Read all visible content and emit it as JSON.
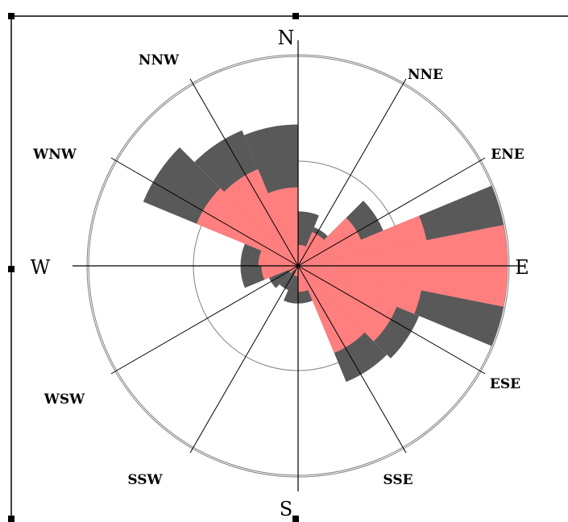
{
  "chart_data": {
    "type": "polar-bar",
    "title": "",
    "directions": [
      "N",
      "NNE",
      "ENE",
      "E",
      "ESE",
      "SSE",
      "S",
      "SSW",
      "WSW",
      "W",
      "WNW",
      "NNW"
    ],
    "direction_angles_deg": [
      0,
      30,
      60,
      90,
      120,
      150,
      180,
      210,
      240,
      270,
      300,
      330
    ],
    "ring_values": [
      1,
      2
    ],
    "r_max": 2.0,
    "colors": {
      "outer_series": "#595959",
      "inner_series": "#ff7f7f",
      "axis": "#000000",
      "ring": "#808080"
    },
    "series": [
      {
        "values": [
          {
            "start": 0,
            "end": 22.5,
            "r": 0.52
          },
          {
            "start": 22.5,
            "end": 45,
            "r": 0.4
          },
          {
            "start": 45,
            "end": 67.5,
            "r": 0.88
          },
          {
            "start": 67.5,
            "end": 78.75,
            "r": 2.03
          },
          {
            "start": 78.75,
            "end": 101.25,
            "r": 2.03
          },
          {
            "start": 101.25,
            "end": 112.5,
            "r": 2.03
          },
          {
            "start": 112.5,
            "end": 135,
            "r": 1.25
          },
          {
            "start": 135,
            "end": 157.5,
            "r": 1.2
          },
          {
            "start": 157.5,
            "end": 180,
            "r": 0.36
          },
          {
            "start": 180,
            "end": 202.5,
            "r": 0.36
          },
          {
            "start": 202.5,
            "end": 225,
            "r": 0.25
          },
          {
            "start": 225,
            "end": 247.5,
            "r": 0.3
          },
          {
            "start": 247.5,
            "end": 270,
            "r": 0.55
          },
          {
            "start": 270,
            "end": 292.5,
            "r": 0.55
          },
          {
            "start": 292.5,
            "end": 315,
            "r": 1.6
          },
          {
            "start": 315,
            "end": 337.5,
            "r": 1.4
          },
          {
            "start": 337.5,
            "end": 360,
            "r": 1.35
          }
        ]
      },
      {
        "values": [
          {
            "start": 0,
            "end": 22.5,
            "r": 0.2
          },
          {
            "start": 22.5,
            "end": 45,
            "r": 0.35
          },
          {
            "start": 45,
            "end": 67.5,
            "r": 0.65
          },
          {
            "start": 67.5,
            "end": 78.75,
            "r": 1.25
          },
          {
            "start": 78.75,
            "end": 101.25,
            "r": 2.0
          },
          {
            "start": 101.25,
            "end": 112.5,
            "r": 1.2
          },
          {
            "start": 112.5,
            "end": 135,
            "r": 1.02
          },
          {
            "start": 135,
            "end": 157.5,
            "r": 0.9
          },
          {
            "start": 157.5,
            "end": 180,
            "r": 0.25
          },
          {
            "start": 180,
            "end": 202.5,
            "r": 0.1
          },
          {
            "start": 202.5,
            "end": 225,
            "r": 0.05
          },
          {
            "start": 225,
            "end": 247.5,
            "r": 0.1
          },
          {
            "start": 247.5,
            "end": 270,
            "r": 0.35
          },
          {
            "start": 270,
            "end": 292.5,
            "r": 0.38
          },
          {
            "start": 292.5,
            "end": 315,
            "r": 1.05
          },
          {
            "start": 315,
            "end": 337.5,
            "r": 1.0
          },
          {
            "start": 337.5,
            "end": 360,
            "r": 0.75
          }
        ]
      }
    ]
  }
}
